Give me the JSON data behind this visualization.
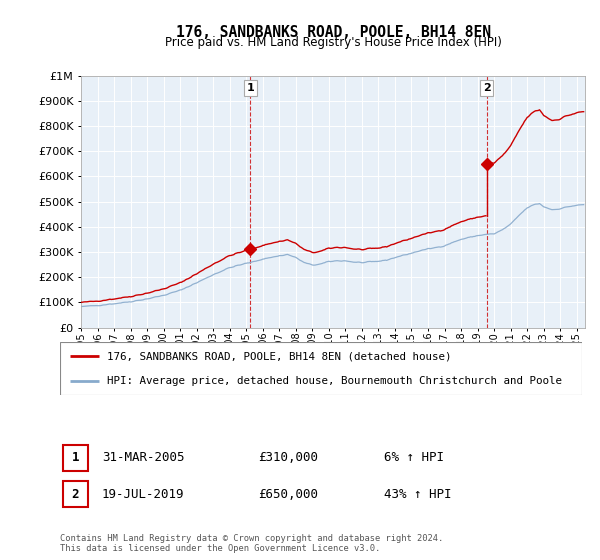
{
  "title": "176, SANDBANKS ROAD, POOLE, BH14 8EN",
  "subtitle": "Price paid vs. HM Land Registry's House Price Index (HPI)",
  "legend_label_red": "176, SANDBANKS ROAD, POOLE, BH14 8EN (detached house)",
  "legend_label_blue": "HPI: Average price, detached house, Bournemouth Christchurch and Poole",
  "annotation1_date": "31-MAR-2005",
  "annotation1_price": "£310,000",
  "annotation1_hpi": "6% ↑ HPI",
  "annotation2_date": "19-JUL-2019",
  "annotation2_price": "£650,000",
  "annotation2_hpi": "43% ↑ HPI",
  "footer": "Contains HM Land Registry data © Crown copyright and database right 2024.\nThis data is licensed under the Open Government Licence v3.0.",
  "color_red": "#cc0000",
  "color_blue": "#88aacc",
  "color_bg": "#e8f0f8",
  "ylim": [
    0,
    1000000
  ],
  "yticks": [
    0,
    100000,
    200000,
    300000,
    400000,
    500000,
    600000,
    700000,
    800000,
    900000,
    1000000
  ],
  "ytick_labels": [
    "£0",
    "£100K",
    "£200K",
    "£300K",
    "£400K",
    "£500K",
    "£600K",
    "£700K",
    "£800K",
    "£900K",
    "£1M"
  ],
  "sale1_x": 2005.25,
  "sale1_y": 310000,
  "sale2_x": 2019.54,
  "sale2_y": 650000,
  "xmin": 1995.0,
  "xmax": 2025.5
}
